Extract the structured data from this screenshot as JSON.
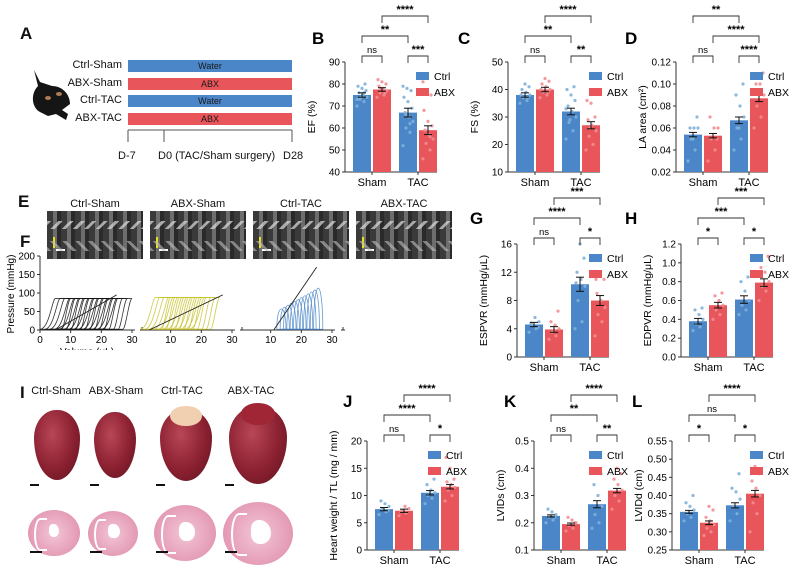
{
  "colors": {
    "ctrl": "#4a86c8",
    "abx": "#e8555a",
    "ctrl_point": "#7fb0d8",
    "abx_point": "#f08e92",
    "line_sham_ctrl": "#111111",
    "line_sham_abx": "#c8c22a",
    "line_tac_ctrl": "#4a86c8",
    "line_tac_abx": "#d9474d"
  },
  "panels": {
    "A": {
      "letter": "A",
      "mouse_icon": "mouse-icon",
      "groups": [
        {
          "label": "Ctrl-Sham",
          "bar": "Water",
          "color": "ctrl"
        },
        {
          "label": "ABX-Sham",
          "bar": "ABX",
          "color": "abx"
        },
        {
          "label": "Ctrl-TAC",
          "bar": "Water",
          "color": "ctrl"
        },
        {
          "label": "ABX-TAC",
          "bar": "ABX",
          "color": "abx"
        }
      ],
      "timeline": [
        "D-7",
        "D0 (TAC/Sham surgery)",
        "D28"
      ]
    },
    "E": {
      "letter": "E",
      "titles": [
        "Ctrl-Sham",
        "ABX-Sham",
        "Ctrl-TAC",
        "ABX-TAC"
      ]
    },
    "F": {
      "letter": "F"
    },
    "I": {
      "letter": "I",
      "titles": [
        "Ctrl-Sham",
        "ABX-Sham",
        "Ctrl-TAC",
        "ABX-TAC"
      ]
    }
  },
  "chart_data": [
    {
      "id": "B",
      "type": "bar",
      "ylabel": "EF (%)",
      "ylim": [
        40,
        90
      ],
      "yticks": [
        40,
        50,
        60,
        70,
        80,
        90
      ],
      "categories": [
        "Sham",
        "TAC"
      ],
      "legend": [
        "Ctrl",
        "ABX"
      ],
      "legend_position": "right",
      "series": [
        {
          "name": "Ctrl",
          "values": [
            75,
            67
          ],
          "sem": [
            1.0,
            2.0
          ]
        },
        {
          "name": "ABX",
          "values": [
            77.5,
            59
          ],
          "sem": [
            0.8,
            2.0
          ]
        }
      ],
      "points": {
        "Ctrl": [
          [
            70,
            72,
            73,
            74,
            75,
            76,
            77,
            78,
            79,
            80,
            74,
            73,
            76
          ],
          [
            52,
            58,
            60,
            63,
            65,
            67,
            69,
            72,
            74,
            77,
            78,
            79,
            62,
            66
          ]
        ],
        "ABX": [
          [
            74,
            75,
            76,
            77,
            78,
            79,
            80,
            81,
            82,
            76,
            78
          ],
          [
            46,
            50,
            53,
            55,
            57,
            59,
            61,
            63,
            68,
            75,
            76,
            81,
            56
          ]
        ]
      },
      "significance": [
        {
          "pair": "Sham-Ctrl|Sham-ABX",
          "label": "ns"
        },
        {
          "pair": "TAC-Ctrl|TAC-ABX",
          "label": "***"
        },
        {
          "pair": "Sham-Ctrl|TAC-Ctrl",
          "label": "**"
        },
        {
          "pair": "Sham-ABX|TAC-ABX",
          "label": "****"
        }
      ]
    },
    {
      "id": "C",
      "type": "bar",
      "ylabel": "FS (%)",
      "ylim": [
        10,
        50
      ],
      "yticks": [
        10,
        20,
        30,
        40,
        50
      ],
      "categories": [
        "Sham",
        "TAC"
      ],
      "legend": [
        "Ctrl",
        "ABX"
      ],
      "legend_position": "right",
      "series": [
        {
          "name": "Ctrl",
          "values": [
            38,
            32
          ],
          "sem": [
            0.8,
            1.2
          ]
        },
        {
          "name": "ABX",
          "values": [
            40,
            27
          ],
          "sem": [
            0.8,
            1.3
          ]
        }
      ],
      "points": {
        "Ctrl": [
          [
            35,
            36,
            37,
            38,
            39,
            40,
            41,
            42,
            38,
            37
          ],
          [
            22,
            25,
            28,
            30,
            32,
            34,
            36,
            38,
            40,
            41,
            29,
            33
          ]
        ],
        "ABX": [
          [
            37,
            38,
            39,
            40,
            41,
            42,
            43,
            44,
            40,
            39
          ],
          [
            18,
            20,
            23,
            25,
            27,
            29,
            30,
            35,
            36,
            44,
            26
          ]
        ]
      },
      "significance": [
        {
          "pair": "Sham-Ctrl|Sham-ABX",
          "label": "ns"
        },
        {
          "pair": "TAC-Ctrl|TAC-ABX",
          "label": "**"
        },
        {
          "pair": "Sham-Ctrl|TAC-Ctrl",
          "label": "**"
        },
        {
          "pair": "Sham-ABX|TAC-ABX",
          "label": "****"
        }
      ]
    },
    {
      "id": "D",
      "type": "bar",
      "ylabel": "LA area (cm²)",
      "ylim": [
        0.02,
        0.12
      ],
      "yticks": [
        0.02,
        0.04,
        0.06,
        0.08,
        0.1,
        0.12
      ],
      "categories": [
        "Sham",
        "TAC"
      ],
      "legend": [
        "Ctrl",
        "ABX"
      ],
      "legend_position": "right",
      "series": [
        {
          "name": "Ctrl",
          "values": [
            0.054,
            0.067
          ],
          "sem": [
            0.002,
            0.003
          ]
        },
        {
          "name": "ABX",
          "values": [
            0.053,
            0.087
          ],
          "sem": [
            0.002,
            0.003
          ]
        }
      ],
      "points": {
        "Ctrl": [
          [
            0.03,
            0.04,
            0.05,
            0.06,
            0.06,
            0.06,
            0.07,
            0.05
          ],
          [
            0.04,
            0.05,
            0.06,
            0.07,
            0.08,
            0.09,
            0.1,
            0.06
          ]
        ],
        "ABX": [
          [
            0.03,
            0.04,
            0.05,
            0.06,
            0.06,
            0.07,
            0.05
          ],
          [
            0.06,
            0.07,
            0.08,
            0.09,
            0.1,
            0.1,
            0.11,
            0.09
          ]
        ]
      },
      "significance": [
        {
          "pair": "Sham-Ctrl|Sham-ABX",
          "label": "ns"
        },
        {
          "pair": "TAC-Ctrl|TAC-ABX",
          "label": "****"
        },
        {
          "pair": "Sham-ABX|TAC-ABX",
          "label": "****"
        },
        {
          "pair": "Sham-Ctrl|TAC-Ctrl",
          "label": "**"
        }
      ]
    },
    {
      "id": "G",
      "type": "bar",
      "ylabel": "ESPVR (mmHg/μL)",
      "ylim": [
        0,
        16
      ],
      "yticks": [
        0,
        4,
        8,
        12,
        16
      ],
      "categories": [
        "Sham",
        "TAC"
      ],
      "legend": [
        "Ctrl",
        "ABX"
      ],
      "legend_position": "right",
      "series": [
        {
          "name": "Ctrl",
          "values": [
            4.6,
            10.3
          ],
          "sem": [
            0.3,
            1.0
          ]
        },
        {
          "name": "ABX",
          "values": [
            3.9,
            8.0
          ],
          "sem": [
            0.4,
            0.7
          ]
        }
      ],
      "points": {
        "Ctrl": [
          [
            3.5,
            4.0,
            4.5,
            5.0,
            5.6,
            4.8,
            4.2
          ],
          [
            4.0,
            5.0,
            8.0,
            10.0,
            11.0,
            12.0,
            14.0,
            16.0,
            10.5
          ]
        ],
        "ABX": [
          [
            2.5,
            3.0,
            3.5,
            4.0,
            4.5,
            5.0,
            6.5,
            3.8
          ],
          [
            3.0,
            5.0,
            6.0,
            7.0,
            8.0,
            9.0,
            11.0,
            11.5,
            11.0
          ]
        ]
      },
      "significance": [
        {
          "pair": "Sham-Ctrl|Sham-ABX",
          "label": "ns"
        },
        {
          "pair": "TAC-Ctrl|TAC-ABX",
          "label": "*"
        },
        {
          "pair": "Sham-Ctrl|TAC-Ctrl",
          "label": "****"
        },
        {
          "pair": "Sham-ABX|TAC-ABX",
          "label": "***"
        }
      ]
    },
    {
      "id": "H",
      "type": "bar",
      "ylabel": "EDPVR (mmHg/μL)",
      "ylim": [
        0,
        1.2
      ],
      "yticks": [
        0.0,
        0.2,
        0.4,
        0.6,
        0.8,
        1.0,
        1.2
      ],
      "categories": [
        "Sham",
        "TAC"
      ],
      "legend": [
        "Ctrl",
        "ABX"
      ],
      "legend_position": "right",
      "series": [
        {
          "name": "Ctrl",
          "values": [
            0.38,
            0.61
          ],
          "sem": [
            0.03,
            0.04
          ]
        },
        {
          "name": "ABX",
          "values": [
            0.55,
            0.79
          ],
          "sem": [
            0.03,
            0.04
          ]
        }
      ],
      "points": {
        "Ctrl": [
          [
            0.28,
            0.32,
            0.35,
            0.4,
            0.45,
            0.5,
            0.52
          ],
          [
            0.45,
            0.5,
            0.55,
            0.6,
            0.7,
            0.8,
            0.85
          ]
        ],
        "ABX": [
          [
            0.4,
            0.45,
            0.5,
            0.55,
            0.6,
            0.65,
            0.68
          ],
          [
            0.6,
            0.7,
            0.75,
            0.8,
            0.9,
            0.95,
            1.07
          ]
        ]
      },
      "significance": [
        {
          "pair": "Sham-Ctrl|Sham-ABX",
          "label": "*"
        },
        {
          "pair": "TAC-Ctrl|TAC-ABX",
          "label": "*"
        },
        {
          "pair": "Sham-Ctrl|TAC-Ctrl",
          "label": "***"
        },
        {
          "pair": "Sham-ABX|TAC-ABX",
          "label": "***"
        }
      ]
    },
    {
      "id": "J",
      "type": "bar",
      "ylabel": "Heart weight / TL (mg / mm)",
      "ylim": [
        0,
        20
      ],
      "yticks": [
        0,
        5,
        10,
        15,
        20
      ],
      "categories": [
        "Sham",
        "TAC"
      ],
      "legend": [
        "Ctrl",
        "ABX"
      ],
      "legend_position": "right",
      "series": [
        {
          "name": "Ctrl",
          "values": [
            7.5,
            10.5
          ],
          "sem": [
            0.3,
            0.4
          ]
        },
        {
          "name": "ABX",
          "values": [
            7.2,
            11.6
          ],
          "sem": [
            0.3,
            0.4
          ]
        }
      ],
      "points": {
        "Ctrl": [
          [
            6.5,
            7.0,
            7.5,
            8.0,
            8.5,
            9.0,
            7.2
          ],
          [
            8.5,
            9.5,
            10.0,
            10.5,
            11.0,
            12.0,
            13.0,
            14.5
          ]
        ],
        "ABX": [
          [
            6.3,
            6.8,
            7.2,
            7.6,
            8.0,
            7.0
          ],
          [
            9.0,
            10.0,
            11.0,
            11.5,
            12.0,
            12.5,
            13.0,
            15.0,
            17.0
          ]
        ]
      },
      "significance": [
        {
          "pair": "Sham-Ctrl|Sham-ABX",
          "label": "ns"
        },
        {
          "pair": "TAC-Ctrl|TAC-ABX",
          "label": "*"
        },
        {
          "pair": "Sham-Ctrl|TAC-Ctrl",
          "label": "****"
        },
        {
          "pair": "Sham-ABX|TAC-ABX",
          "label": "****"
        }
      ]
    },
    {
      "id": "K",
      "type": "bar",
      "ylabel": "LVIDs (cm)",
      "ylim": [
        0.1,
        0.5
      ],
      "yticks": [
        0.1,
        0.2,
        0.3,
        0.4,
        0.5
      ],
      "categories": [
        "Sham",
        "TAC"
      ],
      "legend": [
        "Ctrl",
        "ABX"
      ],
      "legend_position": "right",
      "series": [
        {
          "name": "Ctrl",
          "values": [
            0.225,
            0.268
          ],
          "sem": [
            0.004,
            0.013
          ]
        },
        {
          "name": "ABX",
          "values": [
            0.195,
            0.318
          ],
          "sem": [
            0.004,
            0.008
          ]
        }
      ],
      "points": {
        "Ctrl": [
          [
            0.2,
            0.21,
            0.22,
            0.23,
            0.24,
            0.25,
            0.22
          ],
          [
            0.18,
            0.2,
            0.23,
            0.26,
            0.3,
            0.34,
            0.38,
            0.39
          ]
        ],
        "ABX": [
          [
            0.17,
            0.18,
            0.19,
            0.2,
            0.21,
            0.22,
            0.2
          ],
          [
            0.25,
            0.28,
            0.3,
            0.32,
            0.34,
            0.36,
            0.38,
            0.4
          ]
        ]
      },
      "significance": [
        {
          "pair": "Sham-Ctrl|Sham-ABX",
          "label": "ns"
        },
        {
          "pair": "TAC-Ctrl|TAC-ABX",
          "label": "**"
        },
        {
          "pair": "Sham-Ctrl|TAC-Ctrl",
          "label": "**"
        },
        {
          "pair": "Sham-ABX|TAC-ABX",
          "label": "****"
        }
      ]
    },
    {
      "id": "L",
      "type": "bar",
      "ylabel": "LVIDd (cm)",
      "ylim": [
        0.25,
        0.55
      ],
      "yticks": [
        0.25,
        0.3,
        0.35,
        0.4,
        0.45,
        0.5,
        0.55
      ],
      "categories": [
        "Sham",
        "TAC"
      ],
      "legend": [
        "Ctrl",
        "ABX"
      ],
      "legend_position": "right",
      "series": [
        {
          "name": "Ctrl",
          "values": [
            0.355,
            0.373
          ],
          "sem": [
            0.004,
            0.007
          ]
        },
        {
          "name": "ABX",
          "values": [
            0.325,
            0.405
          ],
          "sem": [
            0.005,
            0.009
          ]
        }
      ],
      "points": {
        "Ctrl": [
          [
            0.33,
            0.34,
            0.35,
            0.36,
            0.37,
            0.38,
            0.4
          ],
          [
            0.33,
            0.35,
            0.37,
            0.39,
            0.41,
            0.42,
            0.46
          ]
        ],
        "ABX": [
          [
            0.29,
            0.3,
            0.31,
            0.32,
            0.33,
            0.34,
            0.36,
            0.37
          ],
          [
            0.3,
            0.35,
            0.38,
            0.4,
            0.42,
            0.44,
            0.46,
            0.48
          ]
        ]
      },
      "significance": [
        {
          "pair": "Sham-Ctrl|Sham-ABX",
          "label": "*"
        },
        {
          "pair": "TAC-Ctrl|TAC-ABX",
          "label": "*"
        },
        {
          "pair": "Sham-Ctrl|TAC-Ctrl",
          "label": "ns"
        },
        {
          "pair": "Sham-ABX|TAC-ABX",
          "label": "****"
        }
      ]
    },
    {
      "id": "F",
      "type": "line",
      "title": "",
      "xlabel": "Volume (μL)",
      "ylabel": "Pressure (mmHg)",
      "ylim": [
        0,
        200
      ],
      "yticks": [
        0,
        50,
        100,
        150,
        200
      ],
      "xlim": [
        0,
        32
      ],
      "xticks": [
        0,
        10,
        20,
        30
      ],
      "subplots": [
        {
          "group": "Ctrl-Sham",
          "color": "line_sham_ctrl",
          "espvr": [
            [
              5,
              0
            ],
            [
              25,
              95
            ]
          ],
          "max_pressure": 85,
          "ved_min": 10,
          "ved_max": 30,
          "loops": 14
        },
        {
          "group": "ABX-Sham",
          "color": "line_sham_abx",
          "espvr": [
            [
              3,
              0
            ],
            [
              27,
              95
            ]
          ],
          "max_pressure": 88,
          "ved_min": 10,
          "ved_max": 26,
          "loops": 12
        },
        {
          "group": "Ctrl-TAC",
          "color": "line_tac_ctrl",
          "espvr": [
            [
              11,
              0
            ],
            [
              25,
              170
            ]
          ],
          "max_pressure": 150,
          "ved_min": 15,
          "ved_max": 27,
          "loops": 12
        },
        {
          "group": "ABX-TAC",
          "color": "line_tac_abx",
          "espvr": [
            [
              7,
              0
            ],
            [
              32,
              200
            ]
          ],
          "max_pressure": 195,
          "ved_min": 18,
          "ved_max": 33,
          "loops": 14
        }
      ]
    }
  ]
}
